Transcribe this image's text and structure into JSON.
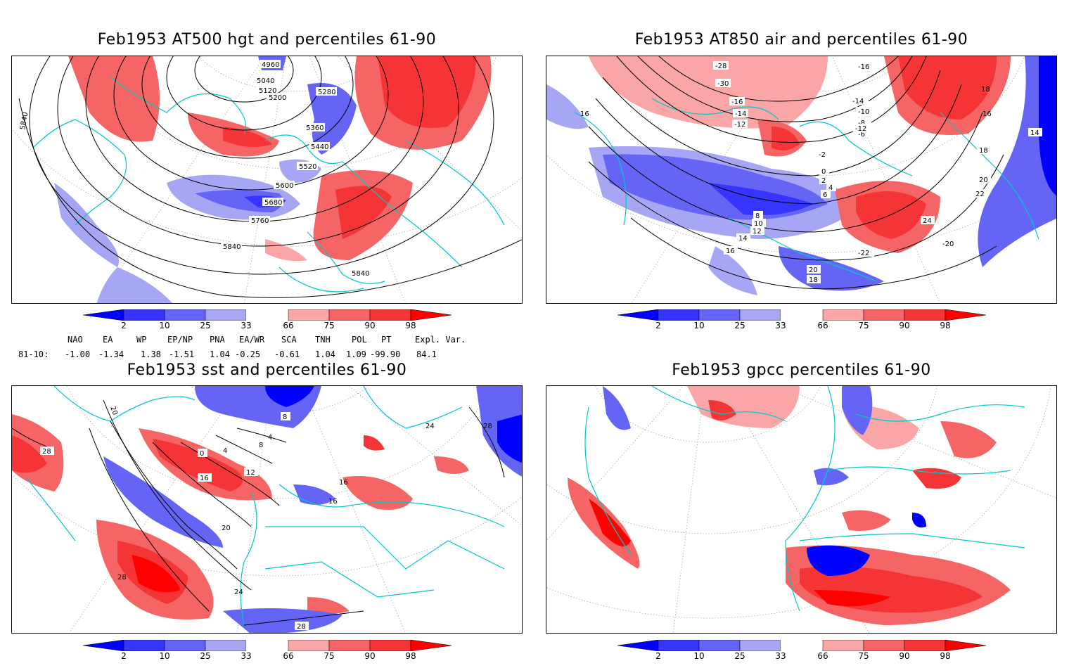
{
  "panels": {
    "hgt": {
      "title": "Feb1953 AT500 hgt and percentiles 61-90",
      "contour_labels": [
        "4960",
        "5040",
        "5120",
        "5200",
        "5280",
        "5360",
        "5440",
        "5520",
        "5600",
        "5680",
        "5760",
        "5840",
        "5840",
        "5840"
      ]
    },
    "air": {
      "title": "Feb1953 AT850 air and percentiles 61-90",
      "contour_labels": [
        "-28",
        "-30",
        "-16",
        "-14",
        "-12",
        "-10",
        "-8",
        "-6",
        "-2",
        "0",
        "2",
        "4",
        "6",
        "8",
        "10",
        "12",
        "14",
        "16",
        "16",
        "16",
        "18",
        "18",
        "20",
        "22",
        "24",
        "-22",
        "-20",
        "20",
        "18",
        "14",
        "-16",
        "-14",
        "-12"
      ]
    },
    "sst": {
      "title": "Feb1953 sst and percentiles 61-90",
      "contour_labels": [
        "20",
        "28",
        "0",
        "4",
        "8",
        "12",
        "16",
        "4",
        "8",
        "16",
        "16",
        "20",
        "24",
        "28",
        "24",
        "28",
        "28"
      ]
    },
    "gpcc": {
      "title": "Feb1953 gpcc percentiles 61-90"
    }
  },
  "colorbar": {
    "ticks": [
      "2",
      "10",
      "25",
      "33",
      "66",
      "75",
      "90",
      "98"
    ],
    "colors": [
      "#0000ff",
      "#3535ff",
      "#6565f5",
      "#a6a6f5",
      "#ffffff",
      "#fba6a6",
      "#f56565",
      "#f53535",
      "#ff0000"
    ]
  },
  "indices": {
    "header": [
      "NAO",
      "EA",
      "WP",
      "EP/NP",
      "PNA",
      "EA/WR",
      "SCA",
      "TNH",
      "POL",
      "PT",
      "Expl. Var."
    ],
    "row_label": "81-10:",
    "values": [
      "-1.00",
      "-1.34",
      "1.38",
      "-1.51",
      "1.04",
      "-0.25",
      "-0.61",
      "1.04",
      "1.09",
      "-99.90",
      "84.1"
    ]
  },
  "colors": {
    "coast": "#00c8c8",
    "blue": "#3535ff",
    "red": "#f53535",
    "contour": "#000000"
  }
}
